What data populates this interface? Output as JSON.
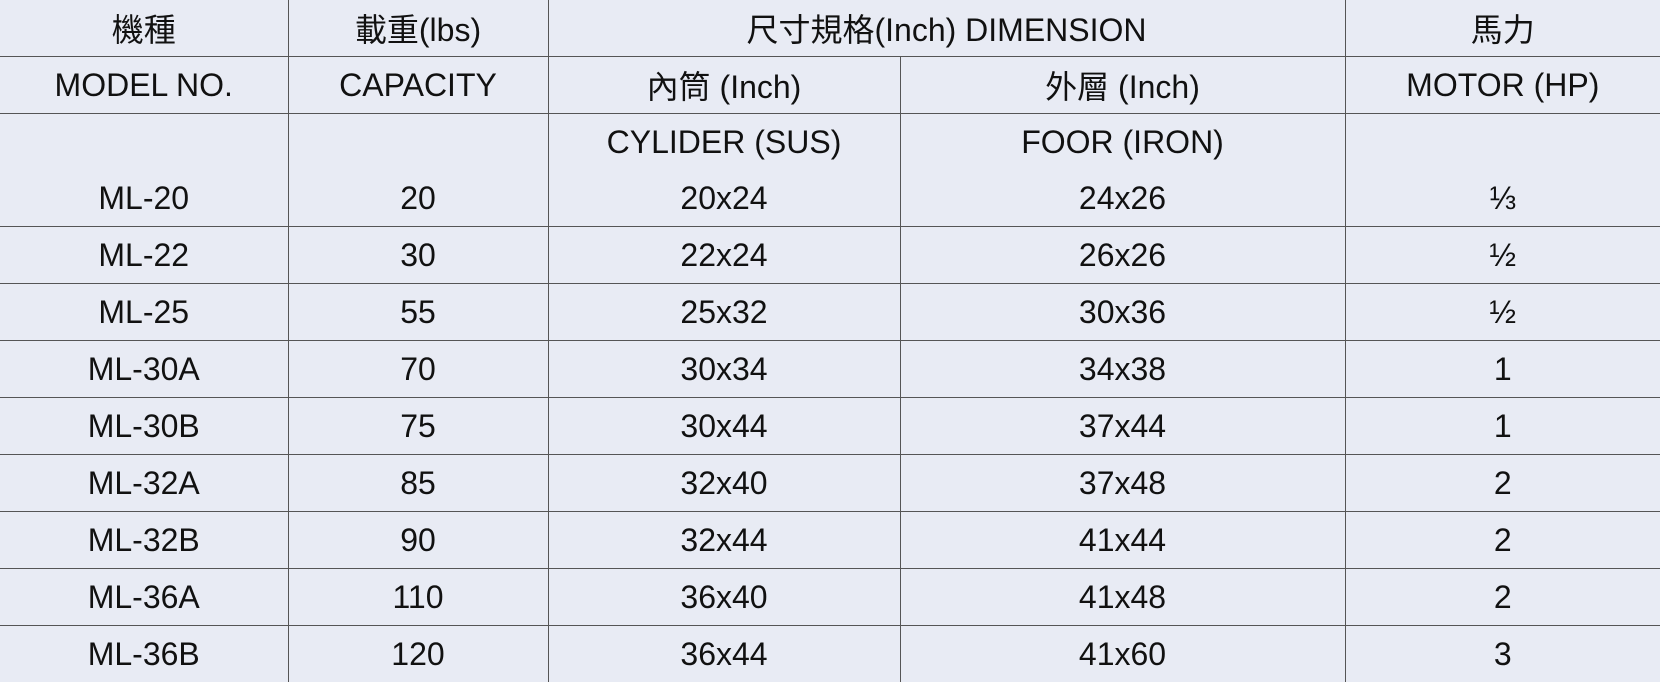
{
  "table": {
    "header": [
      [
        "機種",
        "載重(lbs)",
        "尺寸規格(Inch) DIMENSION",
        "馬力"
      ],
      [
        "MODEL NO.",
        "CAPACITY",
        "內筒 (Inch)",
        "外層 (Inch)",
        "MOTOR (HP)"
      ],
      [
        "CYLIDER (SUS)",
        "FOOR (IRON)"
      ]
    ],
    "rows": [
      [
        "ML-20",
        "20",
        "20x24",
        "24x26",
        "⅓"
      ],
      [
        "ML-22",
        "30",
        "22x24",
        "26x26",
        "½"
      ],
      [
        "ML-25",
        "55",
        "25x32",
        "30x36",
        "½"
      ],
      [
        "ML-30A",
        "70",
        "30x34",
        "34x38",
        "1"
      ],
      [
        "ML-30B",
        "75",
        "30x44",
        "37x44",
        "1"
      ],
      [
        "ML-32A",
        "85",
        "32x40",
        "37x48",
        "2"
      ],
      [
        "ML-32B",
        "90",
        "32x44",
        "41x44",
        "2"
      ],
      [
        "ML-36A",
        "110",
        "36x40",
        "41x48",
        "2"
      ],
      [
        "ML-36B",
        "120",
        "36x44",
        "41x60",
        "3"
      ]
    ]
  }
}
